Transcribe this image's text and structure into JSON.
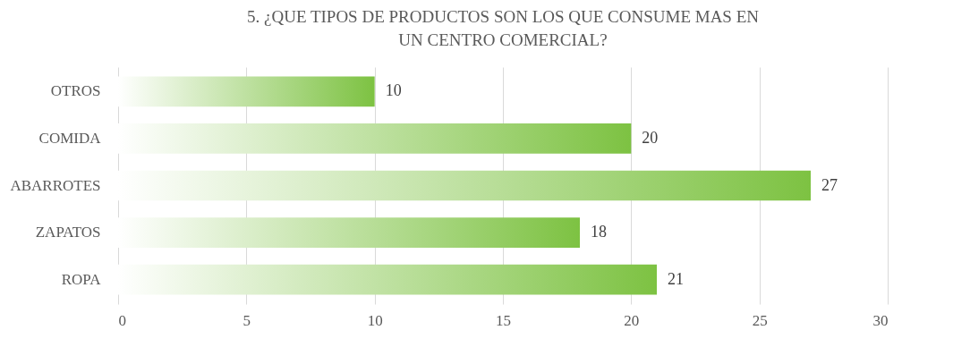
{
  "chart_data": {
    "type": "bar",
    "orientation": "horizontal",
    "title": "5. ¿QUE TIPOS DE PRODUCTOS SON LOS QUE CONSUME MAS EN UN CENTRO COMERCIAL?",
    "categories": [
      "OTROS",
      "COMIDA",
      "ABARROTES",
      "ZAPATOS",
      "ROPA"
    ],
    "values": [
      10,
      20,
      27,
      18,
      21
    ],
    "color": "#7dc242",
    "xlim": [
      0,
      30
    ],
    "xticks": [
      0,
      5,
      10,
      15,
      20,
      25,
      30
    ],
    "grid": "x",
    "data_labels": true
  }
}
